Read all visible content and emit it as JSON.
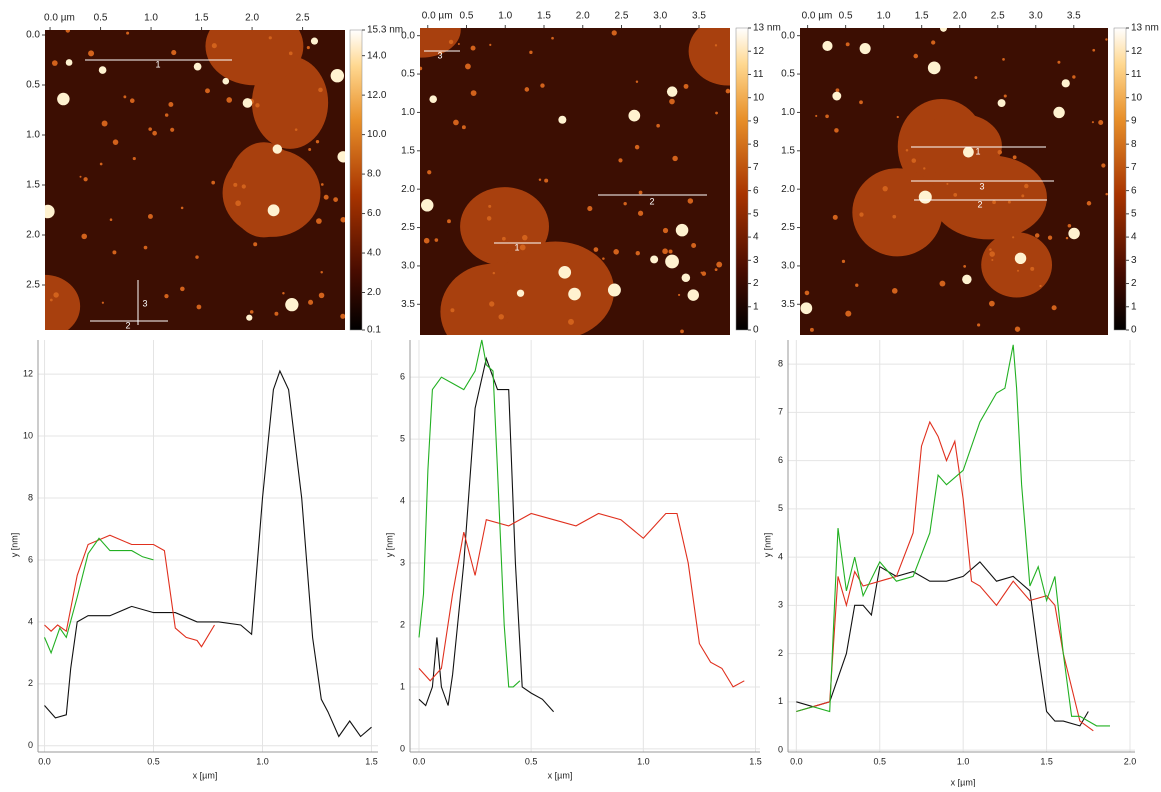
{
  "chart_data": [
    {
      "type": "image",
      "xlim": [
        -0.05,
        2.92
      ],
      "ylim": [
        -0.05,
        2.95
      ],
      "xticks": [
        {
          "value": 0,
          "label": "0.0 µm"
        },
        0.5,
        {
          "value": 1,
          "label": "1.0"
        },
        1.5,
        {
          "value": 2,
          "label": "2.0"
        },
        2.5
      ],
      "yticks": [
        {
          "value": 0,
          "label": "0.0"
        },
        0.5,
        {
          "value": 1,
          "label": "1.0"
        },
        1.5,
        {
          "value": 2,
          "label": "2.0"
        },
        2.5
      ],
      "clim": [
        0.1,
        15.3
      ],
      "cticks": [
        {
          "value": 15.3,
          "label": "15.3 nm"
        },
        {
          "value": 14,
          "label": "14.0"
        },
        {
          "value": 12,
          "label": "12.0"
        },
        {
          "value": 10,
          "label": "10.0"
        },
        {
          "value": 8,
          "label": "8.0"
        },
        {
          "value": 6,
          "label": "6.0"
        },
        {
          "value": 4,
          "label": "4.0"
        },
        {
          "value": 2,
          "label": "2.0"
        },
        0.1
      ],
      "annotations": [
        "1",
        "2",
        "3"
      ]
    },
    {
      "type": "image",
      "xlim": [
        -0.1,
        3.9
      ],
      "ylim": [
        -0.1,
        3.9
      ],
      "xticks": [
        {
          "value": 0,
          "label": "0.0 µm"
        },
        0.5,
        {
          "value": 1,
          "label": "1.0"
        },
        1.5,
        {
          "value": 2,
          "label": "2.0"
        },
        2.5,
        {
          "value": 3,
          "label": "3.0"
        },
        3.5
      ],
      "yticks": [
        {
          "value": 0,
          "label": "0.0"
        },
        0.5,
        {
          "value": 1,
          "label": "1.0"
        },
        1.5,
        {
          "value": 2,
          "label": "2.0"
        },
        2.5,
        {
          "value": 3,
          "label": "3.0"
        },
        3.5
      ],
      "clim": [
        0,
        13
      ],
      "cticks": [
        {
          "value": 13,
          "label": "13 nm"
        },
        12,
        11,
        10,
        9,
        8,
        7,
        6,
        5,
        4,
        3,
        2,
        1,
        0
      ],
      "annotations": [
        "1",
        "2",
        "3"
      ]
    },
    {
      "type": "image",
      "xlim": [
        -0.1,
        3.95
      ],
      "ylim": [
        -0.1,
        3.9
      ],
      "xticks": [
        {
          "value": 0,
          "label": "0.0 µm"
        },
        0.5,
        {
          "value": 1,
          "label": "1.0"
        },
        1.5,
        {
          "value": 2,
          "label": "2.0"
        },
        2.5,
        {
          "value": 3,
          "label": "3.0"
        },
        3.5
      ],
      "yticks": [
        {
          "value": 0,
          "label": "0.0"
        },
        0.5,
        {
          "value": 1,
          "label": "1.0"
        },
        1.5,
        {
          "value": 2,
          "label": "2.0"
        },
        2.5,
        {
          "value": 3,
          "label": "3.0"
        },
        3.5
      ],
      "clim": [
        0,
        13
      ],
      "cticks": [
        {
          "value": 13,
          "label": "13 nm"
        },
        12,
        11,
        10,
        9,
        8,
        7,
        6,
        5,
        4,
        3,
        2,
        1,
        0
      ],
      "annotations": [
        "1",
        "2",
        "3"
      ]
    },
    {
      "type": "line",
      "xlabel": "x [µm]",
      "ylabel": "y [nm]",
      "grid": true,
      "xlim": [
        -0.03,
        1.53
      ],
      "ylim": [
        -0.2,
        13.1
      ],
      "xticks": [
        {
          "value": 0,
          "label": "0.0"
        },
        0.5,
        {
          "value": 1,
          "label": "1.0"
        },
        1.5
      ],
      "yticks": [
        0,
        2,
        4,
        6,
        8,
        10,
        12
      ],
      "series": [
        {
          "color": "#111111",
          "x": [
            0,
            0.05,
            0.1,
            0.12,
            0.15,
            0.2,
            0.3,
            0.4,
            0.5,
            0.6,
            0.7,
            0.8,
            0.9,
            0.95,
            1.0,
            1.05,
            1.08,
            1.12,
            1.18,
            1.23,
            1.27,
            1.3,
            1.35,
            1.4,
            1.45,
            1.5
          ],
          "values": [
            1.3,
            0.9,
            1.0,
            2.5,
            4.0,
            4.2,
            4.2,
            4.5,
            4.3,
            4.3,
            4.0,
            4.0,
            3.9,
            3.6,
            8.0,
            11.5,
            12.1,
            11.5,
            8.0,
            3.5,
            1.5,
            1.1,
            0.3,
            0.8,
            0.3,
            0.6
          ]
        },
        {
          "color": "#e0301e",
          "x": [
            0,
            0.03,
            0.06,
            0.1,
            0.15,
            0.2,
            0.3,
            0.4,
            0.5,
            0.55,
            0.6,
            0.65,
            0.7,
            0.72,
            0.78
          ],
          "values": [
            3.9,
            3.7,
            3.9,
            3.7,
            5.5,
            6.5,
            6.8,
            6.5,
            6.5,
            6.3,
            3.8,
            3.5,
            3.4,
            3.2,
            3.9
          ]
        },
        {
          "color": "#22b022",
          "x": [
            0,
            0.03,
            0.07,
            0.1,
            0.15,
            0.2,
            0.25,
            0.3,
            0.4,
            0.45,
            0.5
          ],
          "values": [
            3.5,
            3.0,
            3.8,
            3.5,
            4.8,
            6.2,
            6.7,
            6.3,
            6.3,
            6.1,
            6.0
          ]
        }
      ]
    },
    {
      "type": "line",
      "xlabel": "x [µm]",
      "ylabel": "y [nm]",
      "grid": true,
      "xlim": [
        -0.04,
        1.52
      ],
      "ylim": [
        -0.05,
        6.6
      ],
      "xticks": [
        {
          "value": 0,
          "label": "0.0"
        },
        0.5,
        {
          "value": 1,
          "label": "1.0"
        },
        1.5
      ],
      "yticks": [
        0,
        1,
        2,
        3,
        4,
        5,
        6
      ],
      "series": [
        {
          "color": "#111111",
          "x": [
            0,
            0.03,
            0.06,
            0.08,
            0.1,
            0.13,
            0.15,
            0.2,
            0.25,
            0.3,
            0.35,
            0.4,
            0.43,
            0.46,
            0.5,
            0.55,
            0.6
          ],
          "values": [
            0.8,
            0.7,
            1.0,
            1.8,
            1.0,
            0.7,
            1.2,
            3.0,
            5.5,
            6.3,
            5.8,
            5.8,
            3.0,
            1.0,
            0.9,
            0.8,
            0.6
          ]
        },
        {
          "color": "#e0301e",
          "x": [
            0,
            0.05,
            0.1,
            0.15,
            0.2,
            0.25,
            0.3,
            0.4,
            0.5,
            0.6,
            0.7,
            0.8,
            0.9,
            1.0,
            1.05,
            1.1,
            1.15,
            1.2,
            1.25,
            1.3,
            1.35,
            1.4,
            1.45
          ],
          "values": [
            1.3,
            1.1,
            1.3,
            2.5,
            3.5,
            2.8,
            3.7,
            3.6,
            3.8,
            3.7,
            3.6,
            3.8,
            3.7,
            3.4,
            3.6,
            3.8,
            3.8,
            3.0,
            1.7,
            1.4,
            1.3,
            1.0,
            1.1
          ]
        },
        {
          "color": "#22b022",
          "x": [
            0,
            0.02,
            0.04,
            0.06,
            0.1,
            0.15,
            0.2,
            0.25,
            0.28,
            0.3,
            0.33,
            0.35,
            0.38,
            0.4,
            0.42,
            0.45
          ],
          "values": [
            1.8,
            2.5,
            4.5,
            5.8,
            6.0,
            5.9,
            5.8,
            6.1,
            6.6,
            6.2,
            6.1,
            4.5,
            2.0,
            1.0,
            1.0,
            1.1
          ]
        }
      ]
    },
    {
      "type": "line",
      "xlabel": "x [µm]",
      "ylabel": "y [nm]",
      "grid": true,
      "xlim": [
        -0.05,
        2.03
      ],
      "ylim": [
        -0.04,
        8.5
      ],
      "xticks": [
        {
          "value": 0,
          "label": "0.0"
        },
        0.5,
        {
          "value": 1,
          "label": "1.0"
        },
        1.5,
        {
          "value": 2,
          "label": "2.0"
        }
      ],
      "yticks": [
        0,
        1,
        2,
        3,
        4,
        5,
        6,
        7,
        8
      ],
      "series": [
        {
          "color": "#111111",
          "x": [
            0,
            0.1,
            0.2,
            0.3,
            0.35,
            0.4,
            0.45,
            0.5,
            0.6,
            0.7,
            0.8,
            0.9,
            1.0,
            1.1,
            1.2,
            1.3,
            1.4,
            1.45,
            1.5,
            1.55,
            1.6,
            1.7,
            1.75
          ],
          "values": [
            1.0,
            0.9,
            1.0,
            2.0,
            3.0,
            3.0,
            2.8,
            3.8,
            3.6,
            3.7,
            3.5,
            3.5,
            3.6,
            3.9,
            3.5,
            3.6,
            3.3,
            2.0,
            0.8,
            0.6,
            0.6,
            0.5,
            0.8
          ]
        },
        {
          "color": "#e0301e",
          "x": [
            0,
            0.1,
            0.2,
            0.25,
            0.3,
            0.35,
            0.4,
            0.5,
            0.6,
            0.7,
            0.75,
            0.8,
            0.85,
            0.9,
            0.95,
            1.0,
            1.05,
            1.1,
            1.2,
            1.3,
            1.4,
            1.5,
            1.55,
            1.6,
            1.7,
            1.78
          ],
          "values": [
            0.8,
            0.9,
            1.0,
            3.6,
            3.0,
            3.7,
            3.4,
            3.5,
            3.6,
            4.5,
            6.3,
            6.8,
            6.5,
            6.0,
            6.4,
            5.2,
            3.5,
            3.4,
            3.0,
            3.5,
            3.1,
            3.2,
            3.0,
            2.0,
            0.6,
            0.4
          ]
        },
        {
          "color": "#22b022",
          "x": [
            0,
            0.1,
            0.2,
            0.25,
            0.3,
            0.35,
            0.4,
            0.5,
            0.6,
            0.7,
            0.8,
            0.85,
            0.9,
            1.0,
            1.1,
            1.2,
            1.25,
            1.3,
            1.32,
            1.35,
            1.4,
            1.45,
            1.5,
            1.55,
            1.6,
            1.65,
            1.7,
            1.8,
            1.88
          ],
          "values": [
            0.8,
            0.9,
            0.8,
            4.6,
            3.3,
            4.0,
            3.2,
            3.9,
            3.5,
            3.6,
            4.5,
            5.7,
            5.5,
            5.8,
            6.8,
            7.4,
            7.5,
            8.4,
            7.5,
            5.5,
            3.4,
            3.8,
            3.1,
            3.6,
            2.0,
            0.7,
            0.7,
            0.5,
            0.5
          ]
        }
      ]
    }
  ]
}
